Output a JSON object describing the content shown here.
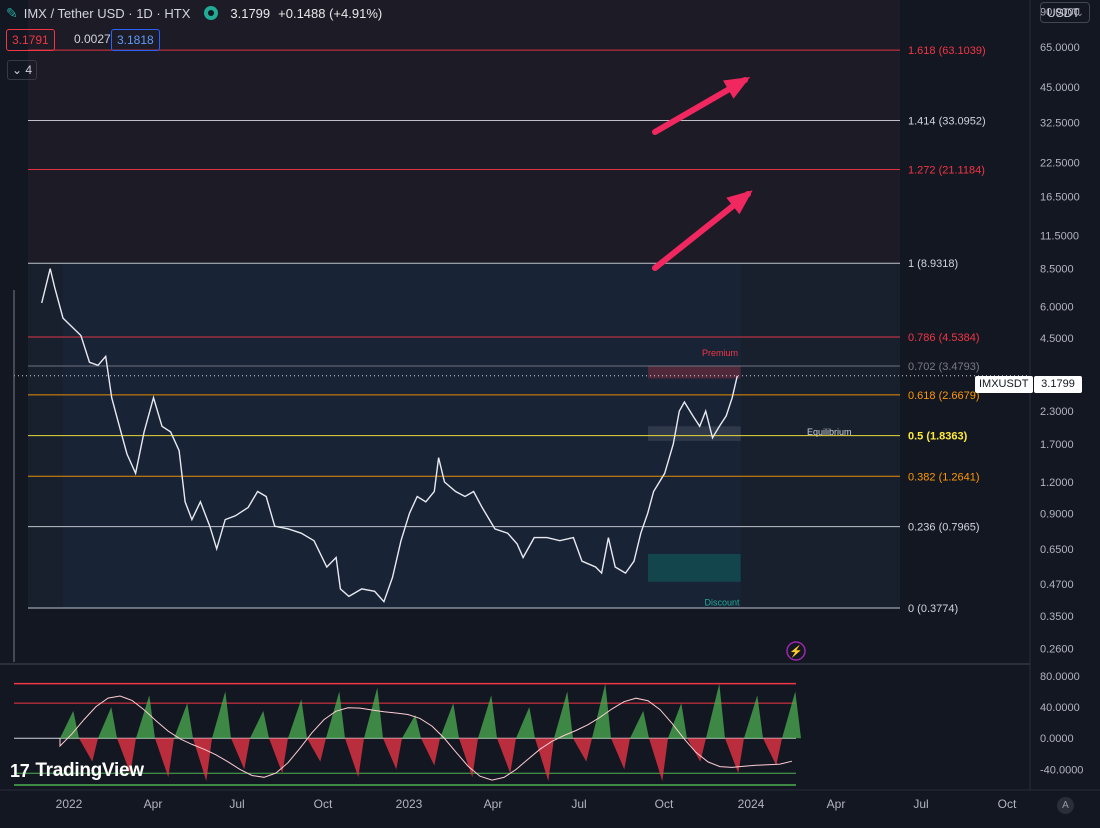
{
  "header": {
    "title": "IMX / Tether USD · 1D · HTX",
    "price": "3.1799",
    "change": "+0.1488 (+4.91%)",
    "bid": "3.1791",
    "spread": "0.0027",
    "ask": "3.1818",
    "indicator_count": "4",
    "currency": "USDT"
  },
  "brand": "TradingView",
  "ticker_tag": "IMXUSDT",
  "ticker_value": "3.1799",
  "auto_button": "A",
  "chart_data": {
    "type": "line",
    "y_scale": "log",
    "ylim": [
      0.23,
      100
    ],
    "price_ticks": [
      "90.0000",
      "65.0000",
      "45.0000",
      "32.5000",
      "22.5000",
      "16.5000",
      "11.5000",
      "8.5000",
      "6.0000",
      "4.5000",
      "3.1799",
      "2.3000",
      "1.7000",
      "1.2000",
      "0.9000",
      "0.6500",
      "0.4700",
      "0.3500",
      "0.2600"
    ],
    "x_labels": [
      "2022",
      "Apr",
      "Jul",
      "Oct",
      "2023",
      "Apr",
      "Jul",
      "Oct",
      "2024",
      "Apr",
      "Jul",
      "Oct"
    ],
    "fib_levels": [
      {
        "label": "1.618 (63.1039)",
        "value": 63.1039,
        "color": "#f23645"
      },
      {
        "label": "1.414 (33.0952)",
        "value": 33.0952,
        "color": "#d1d4dc"
      },
      {
        "label": "1.272 (21.1184)",
        "value": 21.1184,
        "color": "#f23645"
      },
      {
        "label": "1 (8.9318)",
        "value": 8.9318,
        "color": "#d1d4dc"
      },
      {
        "label": "0.786 (4.5384)",
        "value": 4.5384,
        "color": "#f23645"
      },
      {
        "label": "0.702 (3.4793)",
        "value": 3.4793,
        "color": "#787b86"
      },
      {
        "label": "0.618 (2.6679)",
        "value": 2.6679,
        "color": "#ff9800"
      },
      {
        "label": "0.5 (1.8363)",
        "value": 1.8363,
        "color": "#ffeb3b"
      },
      {
        "label": "0.382 (1.2641)",
        "value": 1.2641,
        "color": "#ff9800"
      },
      {
        "label": "0.236 (0.7965)",
        "value": 0.7965,
        "color": "#d1d4dc"
      },
      {
        "label": "0 (0.3774)",
        "value": 0.3774,
        "color": "#d1d4dc"
      }
    ],
    "zones": {
      "premium": "Premium",
      "equilibrium": "Equilibrium",
      "discount": "Discount"
    },
    "series": [
      {
        "values": [
          [
            "2021-11-25",
            6.2
          ],
          [
            "2021-12-05",
            8.5
          ],
          [
            "2021-12-10",
            7.2
          ],
          [
            "2021-12-20",
            5.4
          ],
          [
            "2021-12-30",
            5.0
          ],
          [
            "2022-01-10",
            4.6
          ],
          [
            "2022-01-20",
            3.6
          ],
          [
            "2022-01-30",
            3.5
          ],
          [
            "2022-02-08",
            3.8
          ],
          [
            "2022-02-15",
            2.6
          ],
          [
            "2022-02-24",
            2.0
          ],
          [
            "2022-03-05",
            1.55
          ],
          [
            "2022-03-15",
            1.3
          ],
          [
            "2022-03-25",
            1.9
          ],
          [
            "2022-04-05",
            2.6
          ],
          [
            "2022-04-15",
            2.0
          ],
          [
            "2022-04-25",
            1.9
          ],
          [
            "2022-05-05",
            1.6
          ],
          [
            "2022-05-12",
            1.0
          ],
          [
            "2022-05-20",
            0.85
          ],
          [
            "2022-05-30",
            1.0
          ],
          [
            "2022-06-10",
            0.8
          ],
          [
            "2022-06-18",
            0.65
          ],
          [
            "2022-06-28",
            0.85
          ],
          [
            "2022-07-10",
            0.88
          ],
          [
            "2022-07-25",
            0.95
          ],
          [
            "2022-08-05",
            1.1
          ],
          [
            "2022-08-15",
            1.05
          ],
          [
            "2022-08-25",
            0.8
          ],
          [
            "2022-09-10",
            0.78
          ],
          [
            "2022-09-25",
            0.75
          ],
          [
            "2022-10-10",
            0.7
          ],
          [
            "2022-10-25",
            0.55
          ],
          [
            "2022-11-05",
            0.6
          ],
          [
            "2022-11-10",
            0.45
          ],
          [
            "2022-11-20",
            0.42
          ],
          [
            "2022-12-05",
            0.45
          ],
          [
            "2022-12-20",
            0.44
          ],
          [
            "2022-12-31",
            0.4
          ],
          [
            "2023-01-10",
            0.5
          ],
          [
            "2023-01-20",
            0.7
          ],
          [
            "2023-01-30",
            0.9
          ],
          [
            "2023-02-08",
            1.05
          ],
          [
            "2023-02-18",
            1.0
          ],
          [
            "2023-02-28",
            1.1
          ],
          [
            "2023-03-05",
            1.5
          ],
          [
            "2023-03-12",
            1.2
          ],
          [
            "2023-03-25",
            1.1
          ],
          [
            "2023-04-05",
            1.05
          ],
          [
            "2023-04-15",
            1.1
          ],
          [
            "2023-04-25",
            0.95
          ],
          [
            "2023-05-10",
            0.78
          ],
          [
            "2023-05-25",
            0.75
          ],
          [
            "2023-06-05",
            0.68
          ],
          [
            "2023-06-12",
            0.6
          ],
          [
            "2023-06-25",
            0.72
          ],
          [
            "2023-07-10",
            0.72
          ],
          [
            "2023-07-25",
            0.7
          ],
          [
            "2023-08-10",
            0.72
          ],
          [
            "2023-08-20",
            0.58
          ],
          [
            "2023-09-05",
            0.55
          ],
          [
            "2023-09-12",
            0.52
          ],
          [
            "2023-09-20",
            0.72
          ],
          [
            "2023-09-28",
            0.55
          ],
          [
            "2023-10-10",
            0.52
          ],
          [
            "2023-10-20",
            0.58
          ],
          [
            "2023-10-28",
            0.75
          ],
          [
            "2023-11-05",
            0.9
          ],
          [
            "2023-11-12",
            1.1
          ],
          [
            "2023-11-25",
            1.3
          ],
          [
            "2023-12-05",
            1.7
          ],
          [
            "2023-12-12",
            2.3
          ],
          [
            "2023-12-18",
            2.5
          ],
          [
            "2023-12-28",
            2.2
          ],
          [
            "2024-01-05",
            2.0
          ],
          [
            "2024-01-12",
            2.3
          ],
          [
            "2024-01-20",
            1.8
          ],
          [
            "2024-01-28",
            2.0
          ],
          [
            "2024-02-05",
            2.2
          ],
          [
            "2024-02-12",
            2.6
          ],
          [
            "2024-02-18",
            3.1799
          ]
        ]
      }
    ],
    "oscillator": {
      "ylim": [
        -60,
        90
      ],
      "ticks": [
        "80.0000",
        "40.0000",
        "0.0000",
        "-40.0000"
      ],
      "upper_band": 70,
      "upper_inner": 45,
      "lower_inner": -45,
      "lower_band": -60
    }
  }
}
